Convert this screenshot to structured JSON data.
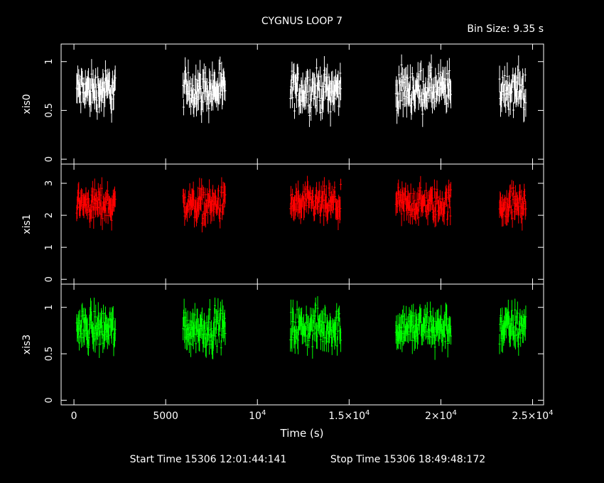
{
  "chart_data": {
    "type": "line",
    "title": "CYGNUS LOOP 7",
    "bin_size_label": "Bin Size: 9.35 s",
    "xlabel": "Time (s)",
    "xlim": [
      -700,
      25600
    ],
    "x_ticks": [
      {
        "value": 0,
        "base": "0",
        "exp": ""
      },
      {
        "value": 5000,
        "base": "5000",
        "exp": ""
      },
      {
        "value": 10000,
        "base": "10",
        "exp": "4"
      },
      {
        "value": 15000,
        "base": "1.5×10",
        "exp": "4"
      },
      {
        "value": 20000,
        "base": "2×10",
        "exp": "4"
      },
      {
        "value": 25000,
        "base": "2.5×10",
        "exp": "4"
      }
    ],
    "footer": {
      "start_time": "Start Time 15306 12:01:44:141",
      "stop_time": "Stop Time 15306 18:49:48:172"
    },
    "segments": [
      [
        150,
        2250
      ],
      [
        5950,
        8250
      ],
      [
        11800,
        14550
      ],
      [
        17550,
        20550
      ],
      [
        23200,
        24650
      ]
    ],
    "series": [
      {
        "name": "xis0",
        "color": "#ffffff",
        "ylim": [
          -0.05,
          1.18
        ],
        "y_ticks": [
          {
            "value": 0,
            "label": "0"
          },
          {
            "value": 0.5,
            "label": "0.5"
          },
          {
            "value": 1,
            "label": "1"
          }
        ],
        "mean": 0.71,
        "spread": 0.14
      },
      {
        "name": "xis1",
        "color": "#ff0000",
        "ylim": [
          -0.15,
          3.6
        ],
        "y_ticks": [
          {
            "value": 0,
            "label": "0"
          },
          {
            "value": 1,
            "label": "1"
          },
          {
            "value": 2,
            "label": "2"
          },
          {
            "value": 3,
            "label": "3"
          }
        ],
        "mean": 2.35,
        "spread": 0.35
      },
      {
        "name": "xis3",
        "color": "#00ff00",
        "ylim": [
          -0.05,
          1.25
        ],
        "y_ticks": [
          {
            "value": 0,
            "label": "0"
          },
          {
            "value": 0.5,
            "label": "0.5"
          },
          {
            "value": 1,
            "label": "1"
          }
        ],
        "mean": 0.78,
        "spread": 0.14
      }
    ]
  }
}
